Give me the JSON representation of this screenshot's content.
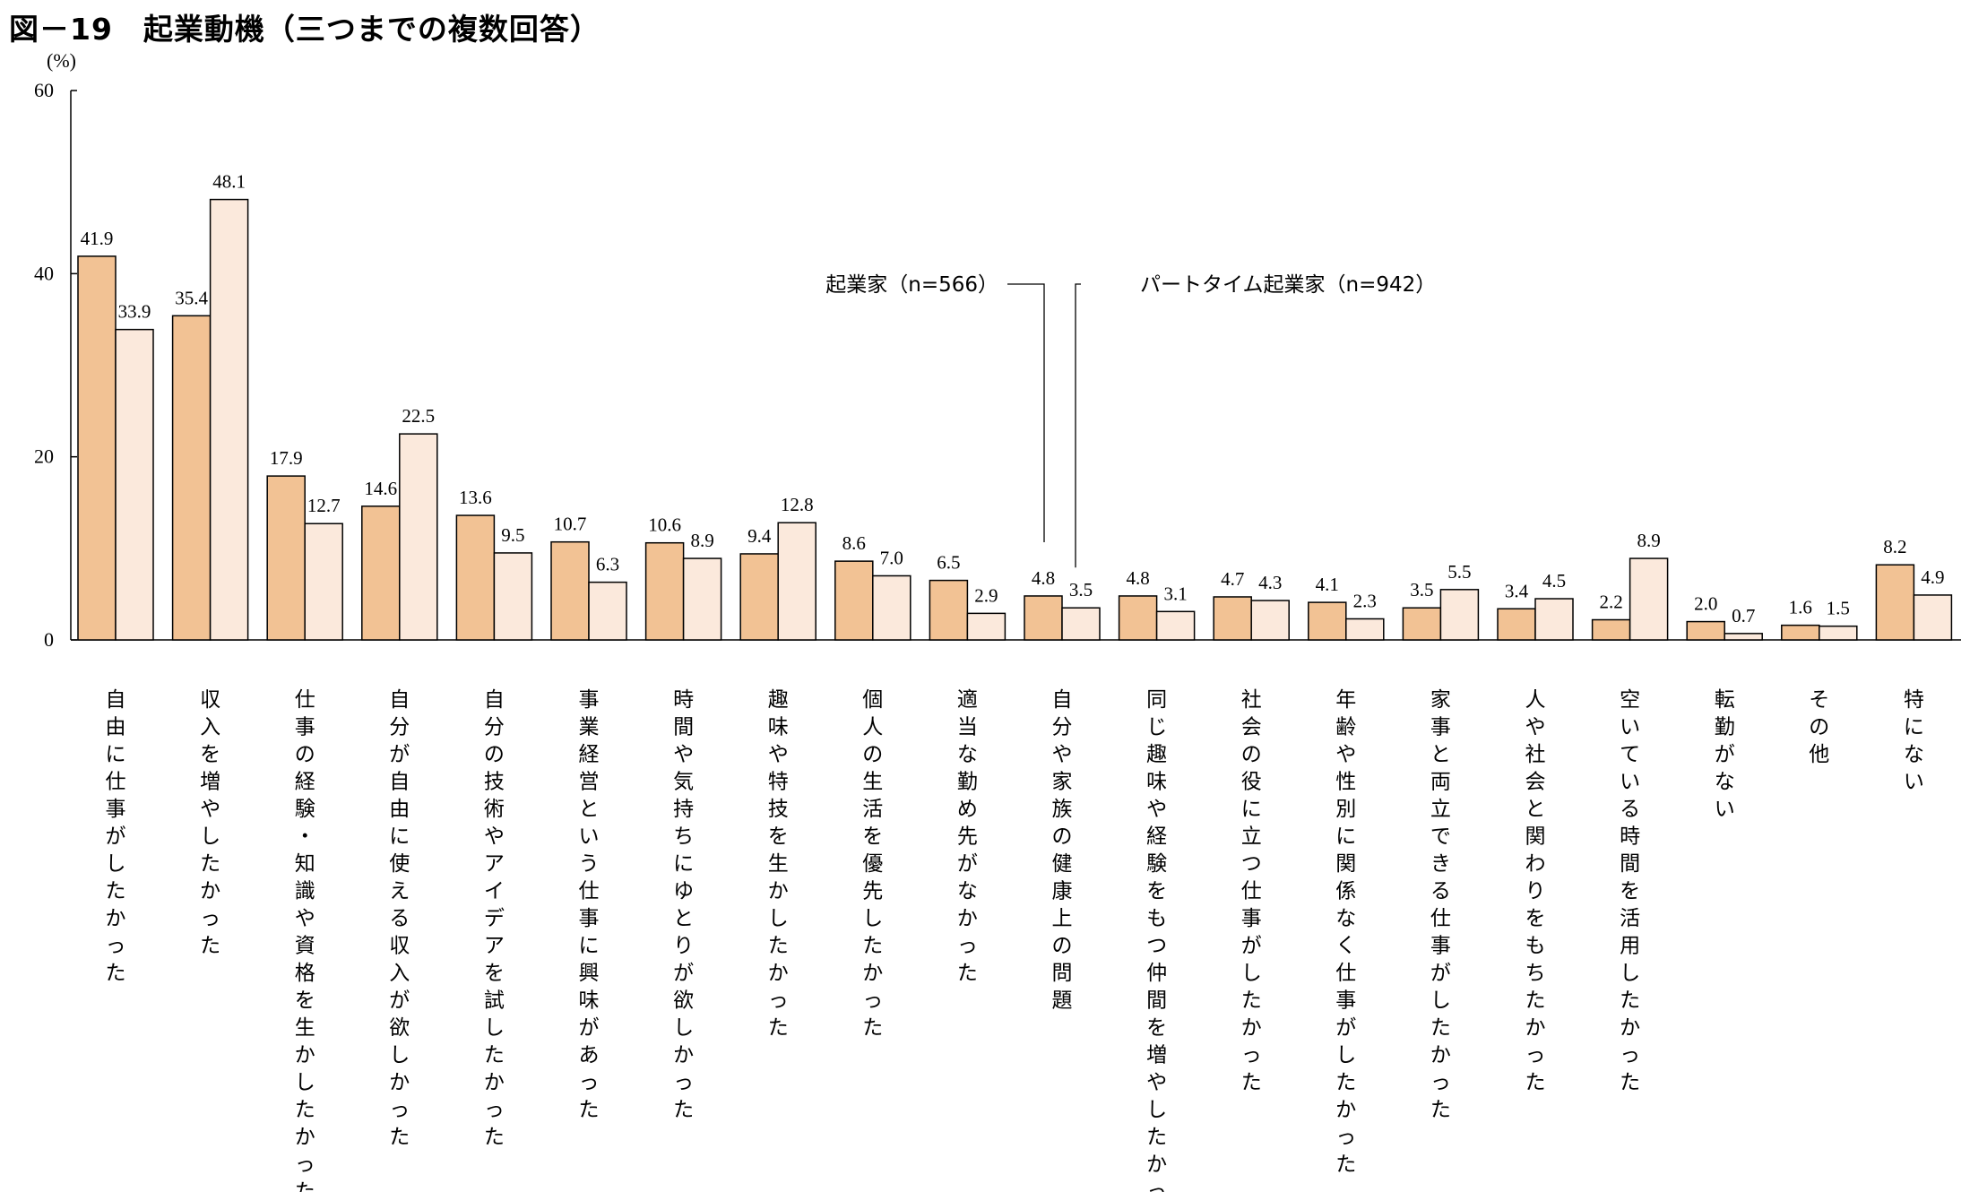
{
  "title": "図－19　起業動機（三つまでの複数回答）",
  "chart_data": {
    "type": "bar",
    "title": "図－19　起業動機（三つまでの複数回答）",
    "unit": "(%)",
    "ylim": [
      0,
      60
    ],
    "yticks": [
      "0",
      "20",
      "40",
      "60"
    ],
    "grid": false,
    "legend_placement": "callout lines, top-center",
    "categories": [
      "自由に仕事がしたかった",
      "収入を増やしたかった",
      "仕事の経験・知識や資格を生かしたかった",
      "自分が自由に使える収入が欲しかった",
      "自分の技術やアイデアを試したかった",
      "事業経営という仕事に興味があった",
      "時間や気持ちにゆとりが欲しかった",
      "趣味や特技を生かしたかった",
      "個人の生活を優先したかった",
      "適当な勤め先がなかった",
      "自分や家族の健康上の問題",
      "同じ趣味や経験をもつ仲間を増やしたかった",
      "社会の役に立つ仕事がしたかった",
      "年齢や性別に関係なく仕事がしたかった",
      "家事と両立できる仕事がしたかった",
      "人や社会と関わりをもちたかった",
      "空いている時間を活用したかった",
      "転勤がない",
      "その他",
      "特にない"
    ],
    "series": [
      {
        "name": "起業家（n=566）",
        "color": "#f2c294",
        "values": [
          41.9,
          35.4,
          17.9,
          14.6,
          13.6,
          10.7,
          10.6,
          9.4,
          8.6,
          6.5,
          4.8,
          4.8,
          4.7,
          4.1,
          3.5,
          3.4,
          2.2,
          2.0,
          1.6,
          8.2
        ],
        "labels": [
          "41.9",
          "35.4",
          "17.9",
          "14.6",
          "13.6",
          "10.7",
          "10.6",
          "9.4",
          "8.6",
          "6.5",
          "4.8",
          "4.8",
          "4.7",
          "4.1",
          "3.5",
          "3.4",
          "2.2",
          "2.0",
          "1.6",
          "8.2"
        ]
      },
      {
        "name": "パートタイム起業家（n=942）",
        "color": "#fbe9dc",
        "values": [
          33.9,
          48.1,
          12.7,
          22.5,
          9.5,
          6.3,
          8.9,
          12.8,
          7.0,
          2.9,
          3.5,
          3.1,
          4.3,
          2.3,
          5.5,
          4.5,
          8.9,
          0.7,
          1.5,
          4.9
        ],
        "labels": [
          "33.9",
          "48.1",
          "12.7",
          "22.5",
          "9.5",
          "6.3",
          "8.9",
          "12.8",
          "7.0",
          "2.9",
          "3.5",
          "3.1",
          "4.3",
          "2.3",
          "5.5",
          "4.5",
          "8.9",
          "0.7",
          "1.5",
          "4.9"
        ]
      }
    ]
  }
}
